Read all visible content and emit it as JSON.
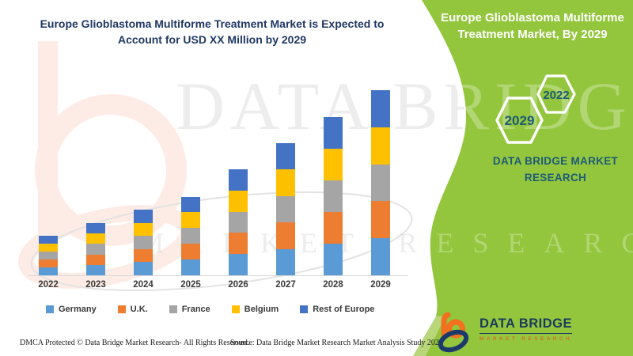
{
  "header": {
    "chart_title": "Europe Glioblastoma Multiforme Treatment Market is Expected to Account for USD XX Million by 2029"
  },
  "side_panel": {
    "title": "Europe Glioblastoma Multiforme Treatment Market, By 2029",
    "hexagons": [
      {
        "label": "2029"
      },
      {
        "label": "2022"
      }
    ],
    "brand_text": "DATA BRIDGE MARKET RESEARCH",
    "colors": {
      "panel_green": "#93c63d",
      "accent_light_green": "#b9d67b",
      "hex_text": "#1d5b77"
    }
  },
  "chart_data": {
    "type": "bar",
    "stacked": true,
    "title": "Europe Glioblastoma Multiforme Treatment Market is Expected to Account for USD XX Million by 2029",
    "categories": [
      "2022",
      "2023",
      "2024",
      "2025",
      "2026",
      "2027",
      "2028",
      "2029"
    ],
    "series": [
      {
        "name": "Germany",
        "color": "#5b9bd5",
        "values": [
          10,
          13.2,
          16.6,
          19.9,
          26.8,
          33.4,
          40,
          46.8
        ]
      },
      {
        "name": "U.K.",
        "color": "#ed7d31",
        "values": [
          10,
          13.2,
          16.6,
          19.9,
          26.8,
          33.4,
          40,
          46.8
        ]
      },
      {
        "name": "France",
        "color": "#a5a5a5",
        "values": [
          10,
          13.2,
          16.6,
          19.9,
          26.8,
          33.4,
          40,
          46.8
        ]
      },
      {
        "name": "Belgium",
        "color": "#ffc000",
        "values": [
          10,
          13.2,
          16.6,
          19.9,
          26.8,
          33.4,
          40,
          46.8
        ]
      },
      {
        "name": "Rest of Europe",
        "color": "#4472c4",
        "values": [
          10,
          13.2,
          16.6,
          19.9,
          26.8,
          33.4,
          40,
          46.8
        ]
      }
    ],
    "value_axis": {
      "visible": false,
      "note": "No numeric axis shown; values are relative units estimated from bar heights (actual figures shown as USD XX Million)"
    },
    "xlabel": "",
    "ylabel": "",
    "gridlines": false,
    "legend_position": "bottom"
  },
  "footer": {
    "left": "DMCA Protected © Data Bridge Market Research- All Rights Reserved.",
    "right": "Source: Data Bridge Market Research Market Analysis Study 2022"
  },
  "logo": {
    "title": "DATA BRIDGE",
    "subtitle": "MARKET RESEARCH"
  },
  "watermark": {
    "line1": "DATA BRIDGE",
    "line2": "MARKET RESEARCH"
  }
}
